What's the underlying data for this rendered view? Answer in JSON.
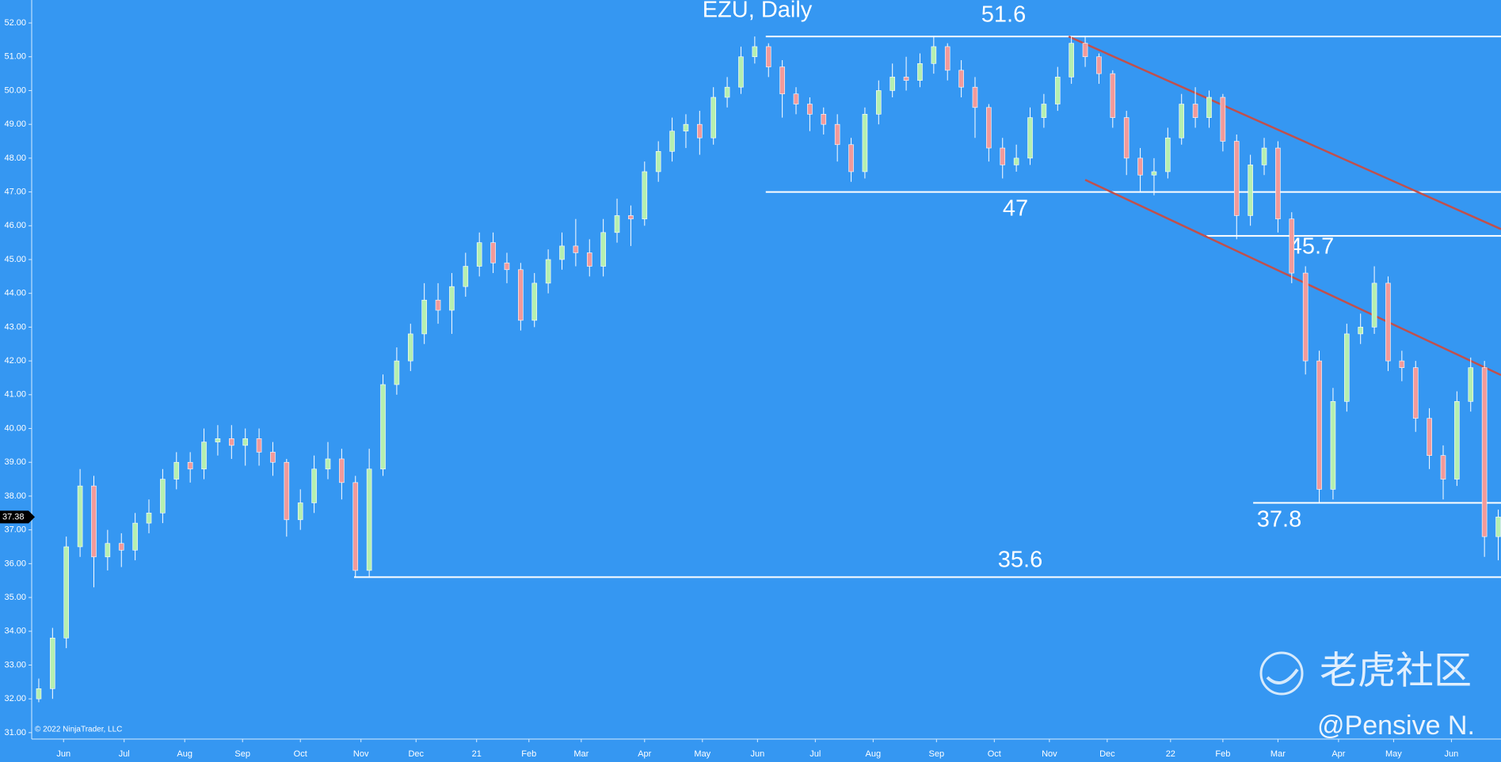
{
  "chart_data": {
    "type": "candlestick",
    "title": "EZU, Daily",
    "copyright": "© 2022 NinjaTrader, LLC",
    "watermark": "老虎社区",
    "author": "@Pensive N.",
    "up_color": "#b6efb0",
    "down_color": "#f29a9a",
    "last_price": 37.38,
    "xlim": [
      0,
      533
    ],
    "ylim": [
      30.81,
      52.68
    ],
    "xticks": [
      {
        "value": 11,
        "label": "Jun"
      },
      {
        "value": 33,
        "label": "Jul"
      },
      {
        "value": 55,
        "label": "Aug"
      },
      {
        "value": 76,
        "label": "Sep"
      },
      {
        "value": 97,
        "label": "Oct"
      },
      {
        "value": 119,
        "label": "Nov"
      },
      {
        "value": 139,
        "label": "Dec"
      },
      {
        "value": 161,
        "label": "21"
      },
      {
        "value": 180,
        "label": "Feb"
      },
      {
        "value": 199,
        "label": "Mar"
      },
      {
        "value": 222,
        "label": "Apr"
      },
      {
        "value": 243,
        "label": "May"
      },
      {
        "value": 263,
        "label": "Jun"
      },
      {
        "value": 284,
        "label": "Jul"
      },
      {
        "value": 305,
        "label": "Aug"
      },
      {
        "value": 328,
        "label": "Sep"
      },
      {
        "value": 349,
        "label": "Oct"
      },
      {
        "value": 369,
        "label": "Nov"
      },
      {
        "value": 390,
        "label": "Dec"
      },
      {
        "value": 413,
        "label": "22"
      },
      {
        "value": 432,
        "label": "Feb"
      },
      {
        "value": 452,
        "label": "Mar"
      },
      {
        "value": 474,
        "label": "Apr"
      },
      {
        "value": 494,
        "label": "May"
      },
      {
        "value": 515,
        "label": "Jun"
      }
    ],
    "yticks": [
      {
        "value": 31,
        "label": "31.00"
      },
      {
        "value": 32,
        "label": "32.00"
      },
      {
        "value": 33,
        "label": "33.00"
      },
      {
        "value": 34,
        "label": "34.00"
      },
      {
        "value": 35,
        "label": "35.00"
      },
      {
        "value": 36,
        "label": "36.00"
      },
      {
        "value": 37,
        "label": "37.00"
      },
      {
        "value": 38,
        "label": "38.00"
      },
      {
        "value": 39,
        "label": "39.00"
      },
      {
        "value": 40,
        "label": "40.00"
      },
      {
        "value": 41,
        "label": "41.00"
      },
      {
        "value": 42,
        "label": "42.00"
      },
      {
        "value": 43,
        "label": "43.00"
      },
      {
        "value": 44,
        "label": "44.00"
      },
      {
        "value": 45,
        "label": "45.00"
      },
      {
        "value": 46,
        "label": "46.00"
      },
      {
        "value": 47,
        "label": "47.00"
      },
      {
        "value": 48,
        "label": "48.00"
      },
      {
        "value": 49,
        "label": "49.00"
      },
      {
        "value": 50,
        "label": "50.00"
      },
      {
        "value": 51,
        "label": "51.00"
      },
      {
        "value": 52,
        "label": "52.00"
      }
    ],
    "candles": {
      "x": [
        2,
        7,
        12,
        17,
        22,
        27,
        32,
        37,
        42,
        47,
        52,
        57,
        62,
        67,
        72,
        77,
        82,
        87,
        92,
        97,
        102,
        107,
        112,
        117,
        122,
        127,
        132,
        137,
        142,
        147,
        152,
        157,
        162,
        167,
        172,
        177,
        182,
        187,
        192,
        197,
        202,
        207,
        212,
        217,
        222,
        227,
        232,
        237,
        242,
        247,
        252,
        257,
        262,
        267,
        272,
        277,
        282,
        287,
        292,
        297,
        302,
        307,
        312,
        317,
        322,
        327,
        332,
        337,
        342,
        347,
        352,
        357,
        362,
        367,
        372,
        377,
        382,
        387,
        392,
        397,
        402,
        407,
        412,
        417,
        422,
        427,
        432,
        437,
        442,
        447,
        452,
        457,
        462,
        467,
        472,
        477,
        482,
        487,
        492,
        497,
        502,
        507,
        512,
        517,
        522,
        527,
        532
      ],
      "open": [
        32.0,
        32.3,
        33.8,
        36.5,
        38.3,
        36.2,
        36.6,
        36.4,
        37.2,
        37.5,
        38.5,
        39.0,
        38.8,
        39.6,
        39.7,
        39.5,
        39.7,
        39.3,
        39.0,
        37.3,
        37.8,
        38.8,
        39.1,
        38.4,
        35.8,
        38.8,
        41.3,
        42.0,
        42.8,
        43.8,
        43.5,
        44.2,
        44.8,
        45.5,
        44.9,
        44.7,
        43.2,
        44.3,
        45.0,
        45.4,
        45.2,
        44.8,
        45.8,
        46.3,
        46.2,
        47.6,
        48.2,
        48.8,
        49.0,
        48.6,
        49.8,
        50.1,
        51.0,
        51.3,
        50.7,
        49.9,
        49.6,
        49.3,
        49.0,
        48.4,
        47.6,
        49.3,
        50.0,
        50.4,
        50.3,
        50.8,
        51.3,
        50.6,
        50.1,
        49.5,
        48.3,
        47.8,
        48.0,
        49.2,
        49.6,
        50.4,
        51.4,
        51.0,
        50.5,
        49.2,
        48.0,
        47.5,
        47.6,
        48.6,
        49.6,
        49.2,
        49.8,
        48.5,
        46.3,
        47.8,
        48.3,
        46.2,
        44.6,
        42.0,
        38.2,
        40.8,
        42.8,
        43.0,
        44.3,
        42.0,
        41.8,
        40.3,
        39.2,
        38.5,
        40.8,
        41.8,
        36.8
      ],
      "high": [
        32.6,
        34.1,
        36.8,
        38.8,
        38.6,
        37.0,
        36.9,
        37.5,
        37.9,
        38.8,
        39.3,
        39.3,
        40.0,
        40.1,
        40.1,
        40.0,
        40.0,
        39.6,
        39.1,
        38.2,
        39.2,
        39.6,
        39.4,
        38.6,
        39.4,
        41.6,
        42.4,
        43.1,
        44.3,
        44.3,
        44.6,
        45.2,
        45.8,
        45.8,
        45.2,
        44.9,
        44.6,
        45.3,
        45.8,
        46.2,
        45.6,
        46.2,
        46.8,
        46.6,
        47.9,
        48.5,
        49.2,
        49.3,
        49.4,
        50.1,
        50.4,
        51.3,
        51.6,
        51.4,
        50.9,
        50.1,
        49.8,
        49.5,
        49.3,
        48.6,
        49.5,
        50.3,
        50.8,
        51.0,
        51.1,
        51.6,
        51.4,
        50.9,
        50.4,
        49.6,
        48.6,
        48.4,
        49.5,
        49.9,
        50.7,
        51.6,
        51.6,
        51.1,
        50.6,
        49.4,
        48.3,
        48.0,
        48.9,
        49.9,
        50.1,
        50.0,
        49.9,
        48.7,
        48.1,
        48.6,
        48.5,
        46.4,
        44.8,
        42.3,
        41.2,
        43.1,
        43.4,
        44.8,
        44.5,
        42.3,
        42.0,
        40.6,
        39.5,
        41.1,
        42.1,
        42.0,
        37.6
      ],
      "low": [
        31.9,
        32.0,
        33.5,
        36.2,
        35.3,
        35.8,
        35.9,
        36.1,
        36.9,
        37.2,
        38.2,
        38.4,
        38.5,
        39.2,
        39.1,
        38.9,
        38.9,
        38.6,
        36.8,
        37.0,
        37.5,
        38.5,
        37.9,
        35.6,
        35.6,
        38.6,
        41.0,
        41.7,
        42.5,
        43.1,
        42.8,
        43.9,
        44.5,
        44.6,
        44.3,
        42.9,
        43.0,
        44.0,
        44.7,
        44.8,
        44.5,
        44.5,
        45.5,
        45.4,
        46.0,
        47.3,
        47.9,
        48.3,
        48.1,
        48.4,
        49.5,
        49.9,
        50.8,
        50.4,
        49.2,
        49.3,
        48.8,
        48.7,
        47.9,
        47.3,
        47.4,
        49.0,
        49.8,
        50.0,
        50.1,
        50.5,
        50.3,
        49.8,
        48.6,
        47.9,
        47.4,
        47.6,
        47.8,
        48.9,
        49.4,
        50.2,
        50.7,
        50.2,
        48.9,
        47.5,
        47.0,
        46.9,
        47.4,
        48.4,
        48.9,
        48.9,
        48.2,
        45.6,
        46.0,
        47.5,
        45.8,
        44.3,
        41.6,
        37.8,
        37.9,
        40.5,
        42.5,
        42.8,
        41.7,
        41.4,
        39.9,
        38.8,
        37.9,
        38.3,
        40.5,
        36.2,
        36.1
      ],
      "close": [
        32.3,
        33.8,
        36.5,
        38.3,
        36.2,
        36.6,
        36.4,
        37.2,
        37.5,
        38.5,
        39.0,
        38.8,
        39.6,
        39.7,
        39.5,
        39.7,
        39.3,
        39.0,
        37.3,
        37.8,
        38.8,
        39.1,
        38.4,
        35.8,
        38.8,
        41.3,
        42.0,
        42.8,
        43.8,
        43.5,
        44.2,
        44.8,
        45.5,
        44.9,
        44.7,
        43.2,
        44.3,
        45.0,
        45.4,
        45.2,
        44.8,
        45.8,
        46.3,
        46.2,
        47.6,
        48.2,
        48.8,
        49.0,
        48.6,
        49.8,
        50.1,
        51.0,
        51.3,
        50.7,
        49.9,
        49.6,
        49.3,
        49.0,
        48.4,
        47.6,
        49.3,
        50.0,
        50.4,
        50.3,
        50.8,
        51.3,
        50.6,
        50.1,
        49.5,
        48.3,
        47.8,
        48.0,
        49.2,
        49.6,
        50.4,
        51.4,
        51.0,
        50.5,
        49.2,
        48.0,
        47.5,
        47.6,
        48.6,
        49.6,
        49.2,
        49.8,
        48.5,
        46.3,
        47.8,
        48.3,
        46.2,
        44.6,
        42.0,
        38.2,
        40.8,
        42.8,
        43.0,
        44.3,
        42.0,
        41.8,
        40.3,
        39.2,
        38.5,
        40.8,
        41.8,
        36.8,
        37.38
      ]
    },
    "levels": [
      {
        "value": 51.6,
        "start": 266,
        "color": "#ffffff"
      },
      {
        "value": 47,
        "start": 266,
        "color": "#ffffff"
      },
      {
        "value": 45.7,
        "start": 426,
        "color": "#ffffff"
      },
      {
        "value": 37.8,
        "start": 443,
        "color": "#ffffff"
      },
      {
        "value": 35.6,
        "start": 116.5,
        "color": "#ffffff"
      }
    ],
    "trendlines": [
      {
        "x": [
          376,
          533
        ],
        "y": [
          51.6,
          45.9
        ],
        "color": "#c0504d"
      },
      {
        "x": [
          382,
          533
        ],
        "y": [
          47.36,
          41.58
        ],
        "color": "#c0504d"
      }
    ]
  }
}
